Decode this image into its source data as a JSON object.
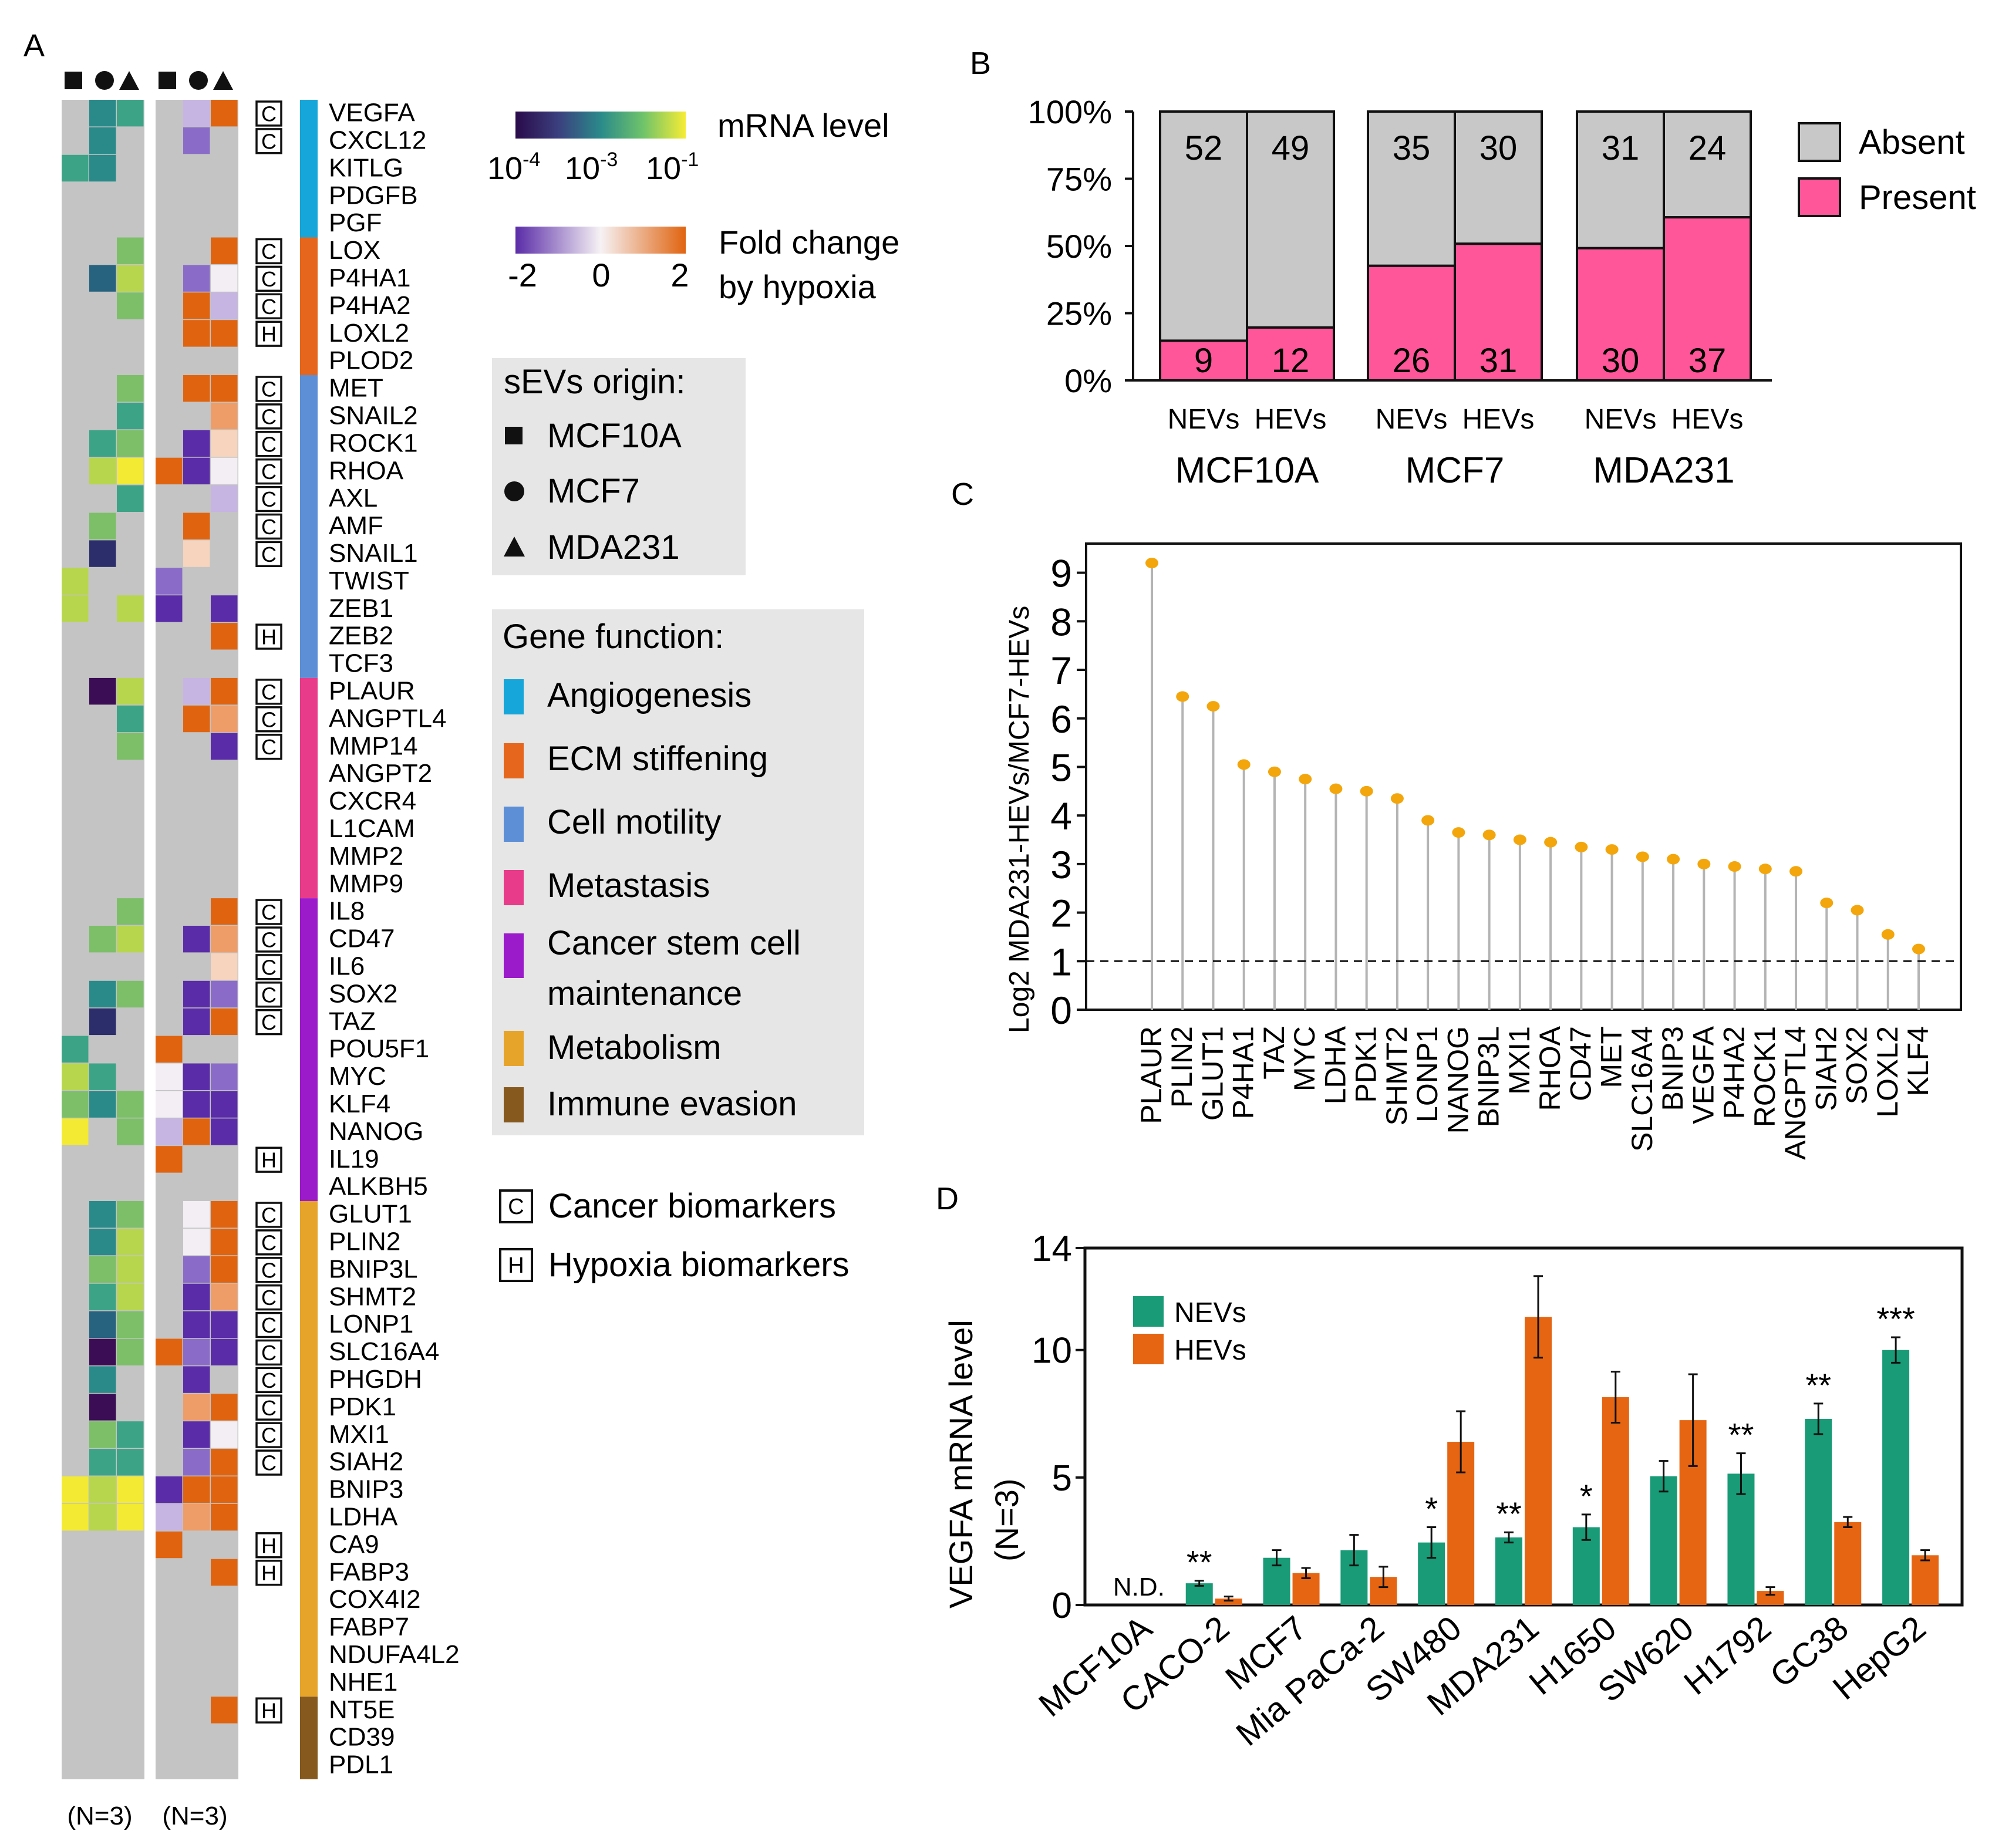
{
  "panel_labels": {
    "a": "A",
    "b": "B",
    "c": "C",
    "d": "D"
  },
  "colors": {
    "grey": "#c4c4c4",
    "viridis": [
      "#3a0d55",
      "#2b2e6b",
      "#27627f",
      "#2a8a8a",
      "#3ca386",
      "#7cbf68",
      "#b7d64e",
      "#f2ea33"
    ],
    "diverge": [
      "#5a2ca8",
      "#8a6cc8",
      "#c6b4e2",
      "#f2eef4",
      "#f6d4bd",
      "#ef9d68",
      "#e06410"
    ],
    "func": [
      "#16a6d9",
      "#e5661c",
      "#5d8fd6",
      "#e83b89",
      "#9b1bcb",
      "#e6a42b",
      "#86591f"
    ],
    "absent": "#c8c8c8",
    "present": "#ff5599",
    "lollipop_dot": "#f3a60c",
    "nevs": "#189b76",
    "hevs": "#e56512"
  },
  "panel_a": {
    "genes": [
      "VEGFA",
      "CXCL12",
      "KITLG",
      "PDGFB",
      "PGF",
      "LOX",
      "P4HA1",
      "P4HA2",
      "LOXL2",
      "PLOD2",
      "MET",
      "SNAIL2",
      "ROCK1",
      "RHOA",
      "AXL",
      "AMF",
      "SNAIL1",
      "TWIST",
      "ZEB1",
      "ZEB2",
      "TCF3",
      "PLAUR",
      "ANGPTL4",
      "MMP14",
      "ANGPT2",
      "CXCR4",
      "L1CAM",
      "MMP2",
      "MMP9",
      "IL8",
      "CD47",
      "IL6",
      "SOX2",
      "TAZ",
      "POU5F1",
      "MYC",
      "KLF4",
      "NANOG",
      "IL19",
      "ALKBH5",
      "GLUT1",
      "PLIN2",
      "BNIP3L",
      "SHMT2",
      "LONP1",
      "SLC16A4",
      "PHGDH",
      "PDK1",
      "MXI1",
      "SIAH2",
      "BNIP3",
      "LDHA",
      "CA9",
      "FABP3",
      "COX4I2",
      "FABP7",
      "NDUFA4L2",
      "NHE1",
      "NT5E",
      "CD39",
      "PDL1"
    ],
    "biomarkers": [
      "C",
      "C",
      "",
      "",
      "",
      "C",
      "C",
      "C",
      "H",
      "",
      "C",
      "C",
      "C",
      "C",
      "C",
      "C",
      "C",
      "",
      "",
      "H",
      "",
      "C",
      "C",
      "C",
      "",
      "",
      "",
      "",
      "",
      "C",
      "C",
      "C",
      "C",
      "C",
      "",
      "",
      "",
      "",
      "H",
      "",
      "C",
      "C",
      "C",
      "C",
      "C",
      "C",
      "C",
      "C",
      "C",
      "C",
      "",
      "",
      "H",
      "H",
      "",
      "",
      "",
      "",
      "H",
      "",
      ""
    ],
    "function_groups": [
      {
        "name": "Angiogenesis",
        "start": 0,
        "end": 4
      },
      {
        "name": "ECM stiffening",
        "start": 5,
        "end": 9
      },
      {
        "name": "Cell motility",
        "start": 10,
        "end": 20
      },
      {
        "name": "Metastasis",
        "start": 21,
        "end": 28
      },
      {
        "name": "Cancer stem cell maintenance",
        "start": 29,
        "end": 39
      },
      {
        "name": "Metabolism",
        "start": 40,
        "end": 57
      },
      {
        "name": "Immune evasion",
        "start": 58,
        "end": 60
      }
    ],
    "mrna_level": [
      [
        -1,
        3,
        4
      ],
      [
        -1,
        3,
        -1
      ],
      [
        4,
        3,
        -1
      ],
      [
        -1,
        -1,
        -1
      ],
      [
        -1,
        -1,
        -1
      ],
      [
        -1,
        -1,
        5
      ],
      [
        -1,
        2,
        6
      ],
      [
        -1,
        -1,
        5
      ],
      [
        -1,
        -1,
        -1
      ],
      [
        -1,
        -1,
        -1
      ],
      [
        -1,
        -1,
        5
      ],
      [
        -1,
        -1,
        4
      ],
      [
        -1,
        4,
        5
      ],
      [
        -1,
        6,
        7
      ],
      [
        -1,
        -1,
        4
      ],
      [
        -1,
        5,
        -1
      ],
      [
        -1,
        1,
        -1
      ],
      [
        6,
        -1,
        -1
      ],
      [
        6,
        -1,
        6
      ],
      [
        -1,
        -1,
        -1
      ],
      [
        -1,
        -1,
        -1
      ],
      [
        -1,
        0,
        6
      ],
      [
        -1,
        -1,
        4
      ],
      [
        -1,
        -1,
        5
      ],
      [
        -1,
        -1,
        -1
      ],
      [
        -1,
        -1,
        -1
      ],
      [
        -1,
        -1,
        -1
      ],
      [
        -1,
        -1,
        -1
      ],
      [
        -1,
        -1,
        -1
      ],
      [
        -1,
        -1,
        5
      ],
      [
        -1,
        5,
        6
      ],
      [
        -1,
        -1,
        -1
      ],
      [
        -1,
        3,
        5
      ],
      [
        -1,
        1,
        -1
      ],
      [
        4,
        -1,
        -1
      ],
      [
        6,
        4,
        -1
      ],
      [
        5,
        3,
        5
      ],
      [
        7,
        -1,
        5
      ],
      [
        -1,
        -1,
        -1
      ],
      [
        -1,
        -1,
        -1
      ],
      [
        -1,
        3,
        5
      ],
      [
        -1,
        3,
        6
      ],
      [
        -1,
        5,
        6
      ],
      [
        -1,
        4,
        6
      ],
      [
        -1,
        2,
        5
      ],
      [
        -1,
        0,
        5
      ],
      [
        -1,
        3,
        -1
      ],
      [
        -1,
        0,
        -1
      ],
      [
        -1,
        5,
        4
      ],
      [
        -1,
        4,
        4
      ],
      [
        7,
        6,
        7
      ],
      [
        7,
        6,
        7
      ],
      [
        -1,
        -1,
        -1
      ],
      [
        -1,
        -1,
        -1
      ],
      [
        -1,
        -1,
        -1
      ],
      [
        -1,
        -1,
        -1
      ],
      [
        -1,
        -1,
        -1
      ],
      [
        -1,
        -1,
        -1
      ],
      [
        -1,
        -1,
        -1
      ],
      [
        -1,
        -1,
        -1
      ],
      [
        -1,
        -1,
        -1
      ]
    ],
    "fold_change": [
      [
        -1,
        2,
        6
      ],
      [
        -1,
        1,
        -1
      ],
      [
        -1,
        -1,
        -1
      ],
      [
        -1,
        -1,
        -1
      ],
      [
        -1,
        -1,
        -1
      ],
      [
        -1,
        -1,
        6
      ],
      [
        -1,
        1,
        3
      ],
      [
        -1,
        6,
        2
      ],
      [
        -1,
        6,
        6
      ],
      [
        -1,
        -1,
        -1
      ],
      [
        -1,
        6,
        6
      ],
      [
        -1,
        -1,
        5
      ],
      [
        -1,
        0,
        4
      ],
      [
        6,
        0,
        3
      ],
      [
        -1,
        -1,
        2
      ],
      [
        -1,
        6,
        -1
      ],
      [
        -1,
        4,
        -1
      ],
      [
        1,
        -1,
        -1
      ],
      [
        0,
        -1,
        0
      ],
      [
        -1,
        -1,
        6
      ],
      [
        -1,
        -1,
        -1
      ],
      [
        -1,
        2,
        6
      ],
      [
        -1,
        6,
        5
      ],
      [
        -1,
        -1,
        0
      ],
      [
        -1,
        -1,
        -1
      ],
      [
        -1,
        -1,
        -1
      ],
      [
        -1,
        -1,
        -1
      ],
      [
        -1,
        -1,
        -1
      ],
      [
        -1,
        -1,
        -1
      ],
      [
        -1,
        -1,
        6
      ],
      [
        -1,
        0,
        5
      ],
      [
        -1,
        -1,
        4
      ],
      [
        -1,
        0,
        1
      ],
      [
        -1,
        0,
        6
      ],
      [
        6,
        -1,
        -1
      ],
      [
        3,
        0,
        1
      ],
      [
        3,
        0,
        0
      ],
      [
        2,
        6,
        0
      ],
      [
        6,
        -1,
        -1
      ],
      [
        -1,
        -1,
        -1
      ],
      [
        -1,
        3,
        6
      ],
      [
        -1,
        3,
        6
      ],
      [
        -1,
        1,
        6
      ],
      [
        -1,
        0,
        5
      ],
      [
        -1,
        0,
        0
      ],
      [
        6,
        1,
        0
      ],
      [
        -1,
        0,
        -1
      ],
      [
        -1,
        5,
        6
      ],
      [
        -1,
        0,
        3
      ],
      [
        -1,
        1,
        6
      ],
      [
        0,
        6,
        6
      ],
      [
        2,
        5,
        6
      ],
      [
        6,
        -1,
        -1
      ],
      [
        -1,
        -1,
        6
      ],
      [
        -1,
        -1,
        -1
      ],
      [
        -1,
        -1,
        -1
      ],
      [
        -1,
        -1,
        -1
      ],
      [
        -1,
        -1,
        -1
      ],
      [
        -1,
        -1,
        6
      ],
      [
        -1,
        -1,
        -1
      ],
      [
        -1,
        -1,
        -1
      ]
    ],
    "n_labels": [
      "(N=3)",
      "(N=3)"
    ],
    "legend": {
      "mrna_title": "mRNA level",
      "mrna_ticks": [
        {
          "base": "10",
          "exp": "-4"
        },
        {
          "base": "10",
          "exp": "-3"
        },
        {
          "base": "10",
          "exp": "-1"
        }
      ],
      "fold_title_1": "Fold change",
      "fold_title_2": "by hypoxia",
      "fold_ticks": [
        "-2",
        "0",
        "2"
      ],
      "origin_title": "sEVs origin:",
      "origins": [
        "MCF10A",
        "MCF7",
        "MDA231"
      ],
      "function_title": "Gene function:",
      "functions": [
        "Angiogenesis",
        "ECM stiffening",
        "Cell motility",
        "Metastasis",
        "Cancer stem cell",
        "maintenance",
        "Metabolism",
        "Immune evasion"
      ],
      "biomarker_keys": [
        {
          "box": "C",
          "label": "Cancer biomarkers"
        },
        {
          "box": "H",
          "label": "Hypoxia biomarkers"
        }
      ]
    }
  },
  "chart_data": [
    {
      "type": "bar",
      "subtype": "stacked-percent",
      "panel": "B",
      "groups": [
        "MCF10A",
        "MCF7",
        "MDA231"
      ],
      "categories": [
        "NEVs",
        "HEVs",
        "NEVs",
        "HEVs",
        "NEVs",
        "HEVs"
      ],
      "series": [
        {
          "name": "Present",
          "values": [
            9,
            12,
            26,
            31,
            30,
            37
          ]
        },
        {
          "name": "Absent",
          "values": [
            52,
            49,
            35,
            30,
            31,
            24
          ]
        }
      ],
      "y_ticks": [
        "0%",
        "25%",
        "50%",
        "75%",
        "100%"
      ],
      "ylim": [
        0,
        100
      ],
      "legend": [
        "Absent",
        "Present"
      ]
    },
    {
      "type": "scatter",
      "subtype": "lollipop",
      "panel": "C",
      "ylabel": "Log2 MDA231-HEVs/MCF7-HEVs",
      "categories": [
        "PLAUR",
        "PLIN2",
        "GLUT1",
        "P4HA1",
        "TAZ",
        "MYC",
        "LDHA",
        "PDK1",
        "SHMT2",
        "LONP1",
        "NANOG",
        "BNIP3L",
        "MXI1",
        "RHOA",
        "CD47",
        "MET",
        "SLC16A4",
        "BNIP3",
        "VEGFA",
        "P4HA2",
        "ROCK1",
        "ANGPTL4",
        "SIAH2",
        "SOX2",
        "LOXL2",
        "KLF4"
      ],
      "values": [
        9.2,
        6.45,
        6.25,
        5.05,
        4.9,
        4.75,
        4.55,
        4.5,
        4.35,
        3.9,
        3.65,
        3.6,
        3.5,
        3.45,
        3.35,
        3.3,
        3.15,
        3.1,
        3.0,
        2.95,
        2.9,
        2.85,
        2.2,
        2.05,
        1.55,
        1.25
      ],
      "ylim": [
        0,
        9.6
      ],
      "y_ticks": [
        0,
        1,
        2,
        3,
        4,
        5,
        6,
        7,
        8,
        9
      ],
      "reference_line": 1
    },
    {
      "type": "bar",
      "subtype": "grouped-with-error",
      "panel": "D",
      "ylabel_line1": "VEGFA mRNA level",
      "ylabel_line2": "(N=3)",
      "categories": [
        "MCF10A",
        "CACO-2",
        "MCF7",
        "Mia PaCa-2",
        "SW480",
        "MDA231",
        "H1650",
        "SW620",
        "H1792",
        "GC38",
        "HepG2"
      ],
      "series": [
        {
          "name": "NEVs",
          "values": [
            0,
            0.85,
            1.85,
            2.15,
            2.45,
            2.65,
            3.05,
            5.05,
            5.15,
            7.3,
            10.0
          ],
          "errors": [
            0,
            0.1,
            0.3,
            0.6,
            0.6,
            0.2,
            0.5,
            0.6,
            0.8,
            0.6,
            0.5
          ]
        },
        {
          "name": "HEVs",
          "values": [
            0,
            0.25,
            1.25,
            1.1,
            6.4,
            11.3,
            8.15,
            7.25,
            0.55,
            3.25,
            1.95
          ],
          "errors": [
            0,
            0.08,
            0.2,
            0.4,
            1.2,
            1.6,
            1.0,
            1.8,
            0.15,
            0.2,
            0.2
          ]
        }
      ],
      "significance": [
        "N.D.",
        "**",
        "",
        "",
        "*",
        "**",
        "*",
        "",
        "**",
        "**",
        "***"
      ],
      "y_ticks": [
        0,
        5,
        10,
        14
      ],
      "ylim": [
        0,
        14
      ]
    }
  ]
}
